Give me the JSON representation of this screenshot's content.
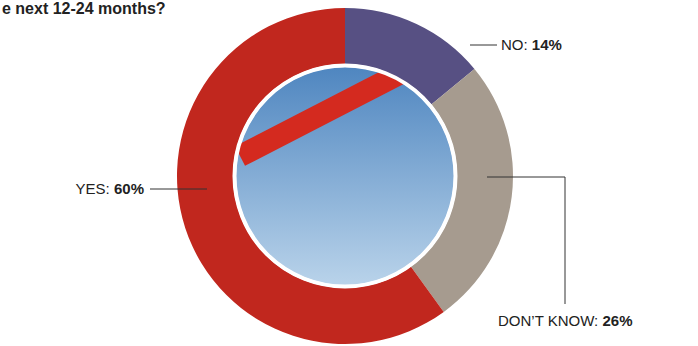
{
  "chart_data": {
    "type": "pie",
    "title": "e next 12-24 months?",
    "categories": [
      "NO:",
      "DON’T KNOW:",
      "YES:"
    ],
    "values": [
      14,
      26,
      60
    ],
    "value_labels": [
      "14%",
      "26%",
      "60%"
    ],
    "colors": [
      "#575083",
      "#a69b8f",
      "#c1271e"
    ],
    "data_labels": true
  }
}
